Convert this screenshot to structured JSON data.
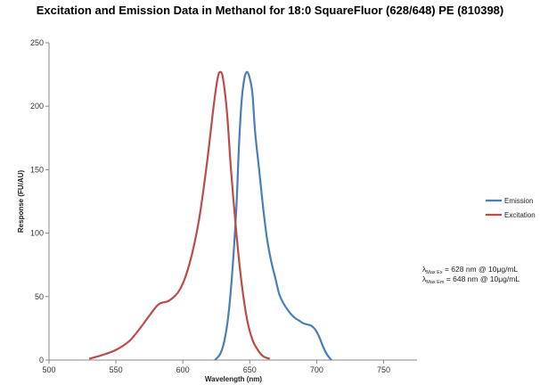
{
  "chart_data": {
    "type": "line",
    "title": "Excitation and Emission Data in Methanol for 18:0 SquareFluor (628/648) PE (810398)",
    "xlabel": "Wavelength (nm)",
    "ylabel": "Response (FU/AU)",
    "xlim": [
      500,
      775
    ],
    "ylim": [
      0,
      250
    ],
    "xticks": [
      500,
      550,
      600,
      650,
      700,
      750
    ],
    "yticks": [
      0,
      50,
      100,
      150,
      200,
      250
    ],
    "grid": false,
    "legend_position": "right",
    "series": [
      {
        "name": "Emission",
        "color": "#4a7ebb",
        "x": [
          624,
          628,
          631,
          634,
          637,
          640,
          642,
          644,
          646,
          648,
          650,
          652,
          654,
          657,
          660,
          663,
          666,
          669,
          672,
          675,
          678,
          681,
          684,
          687,
          690,
          693,
          696,
          699,
          702,
          705,
          708,
          711
        ],
        "y": [
          0,
          5,
          15,
          35,
          70,
          120,
          170,
          205,
          222,
          227,
          222,
          210,
          180,
          150,
          120,
          95,
          78,
          65,
          52,
          45,
          40,
          36,
          33,
          31,
          29,
          28,
          27,
          24,
          18,
          10,
          4,
          0
        ]
      },
      {
        "name": "Excitation",
        "color": "#be4b48",
        "x": [
          530,
          540,
          550,
          560,
          568,
          575,
          582,
          590,
          598,
          605,
          612,
          618,
          623,
          626,
          628,
          630,
          633,
          636,
          640,
          644,
          648,
          652,
          656,
          660,
          665
        ],
        "y": [
          1,
          4,
          8,
          15,
          25,
          35,
          44,
          47,
          56,
          76,
          110,
          155,
          200,
          222,
          227,
          222,
          195,
          150,
          100,
          60,
          32,
          16,
          8,
          3,
          1
        ]
      }
    ],
    "annotations": [
      {
        "symbol": "λ",
        "subscript": "Max Ex",
        "text": "= 628 nm @ 10μg/mL"
      },
      {
        "symbol": "λ",
        "subscript": "Max Em",
        "text": "= 648 nm @ 10μg/mL"
      }
    ]
  }
}
